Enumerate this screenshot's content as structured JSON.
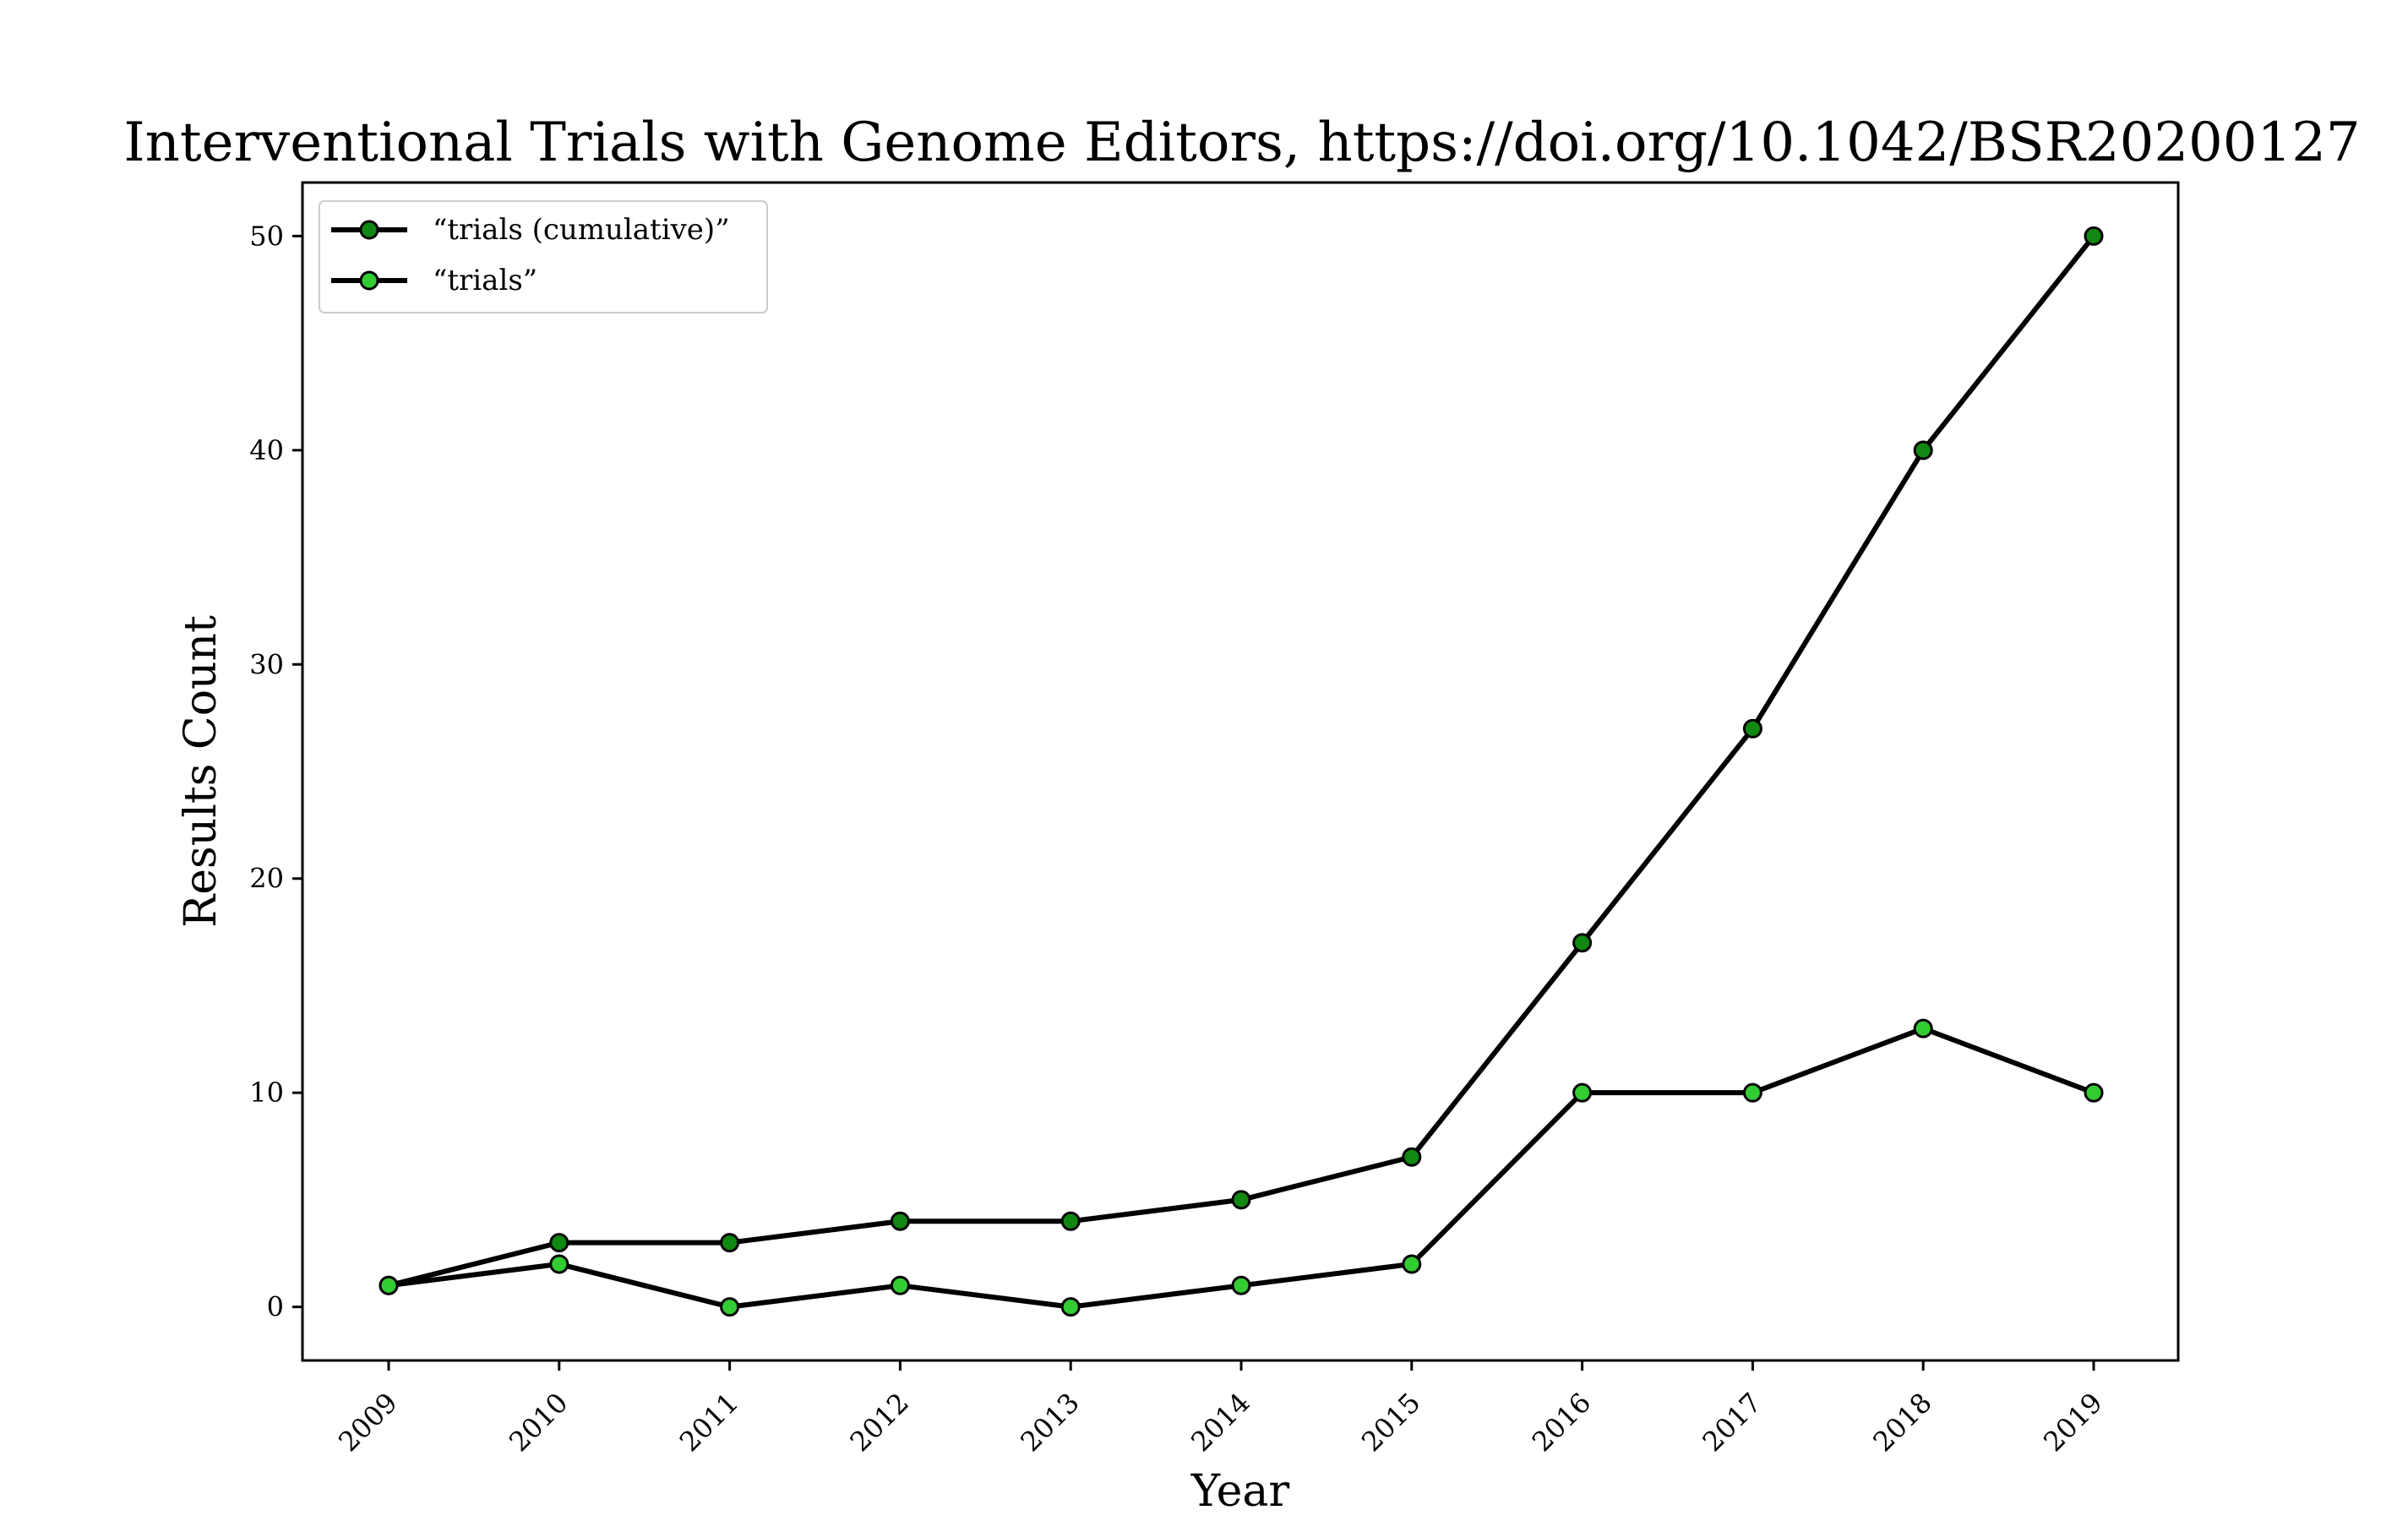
{
  "chart_data": {
    "type": "line",
    "title": "Interventional Trials with Genome Editors, https://doi.org/10.1042/BSR20200127",
    "xlabel": "Year",
    "ylabel": "Results Count",
    "x": [
      "2009",
      "2010",
      "2011",
      "2012",
      "2013",
      "2014",
      "2015",
      "2016",
      "2017",
      "2018",
      "2019"
    ],
    "y_ticks": [
      0,
      10,
      20,
      30,
      40,
      50
    ],
    "ylim": [
      -2.5,
      52.5
    ],
    "grid": false,
    "legend_position": "top-left",
    "series": [
      {
        "name": "“trials (cumulative)”",
        "values": [
          1,
          3,
          3,
          4,
          4,
          5,
          7,
          17,
          27,
          40,
          50
        ],
        "line_color": "#000000",
        "marker_color": "#118811"
      },
      {
        "name": "“trials”",
        "values": [
          1,
          2,
          0,
          1,
          0,
          1,
          2,
          10,
          10,
          13,
          10
        ],
        "line_color": "#000000",
        "marker_color": "#33cc33"
      }
    ]
  }
}
